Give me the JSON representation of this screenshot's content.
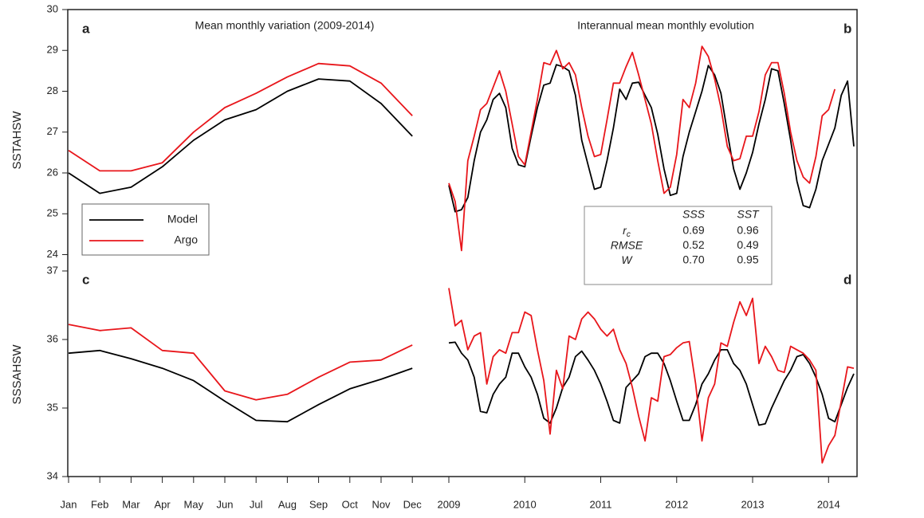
{
  "chart_data": [
    {
      "type": "line",
      "panel_label": "a",
      "title": "Mean monthly variation (2009-2014)",
      "ylabel": "SSTAHSW",
      "ylim": [
        23.6,
        30
      ],
      "yticks": [
        24,
        25,
        26,
        27,
        28,
        29,
        30
      ],
      "legend": "lower left",
      "series": [
        {
          "name": "Model",
          "color": "#000000",
          "values": [
            26.0,
            25.5,
            25.65,
            26.15,
            26.8,
            27.3,
            27.55,
            28.0,
            28.3,
            28.25,
            27.7,
            26.9
          ]
        },
        {
          "name": "Argo",
          "color": "#e8161b",
          "values": [
            26.55,
            26.05,
            26.05,
            26.25,
            27.0,
            27.6,
            27.95,
            28.35,
            28.68,
            28.62,
            28.2,
            27.4
          ]
        }
      ]
    },
    {
      "type": "line",
      "panel_label": "b",
      "title": "Interannual mean monthly evolution",
      "ylim": [
        23.6,
        30
      ],
      "xlim": [
        0,
        64.5
      ],
      "series": [
        {
          "color": "#000000",
          "values": [
            25.7,
            25.05,
            25.1,
            25.4,
            26.3,
            27.0,
            27.3,
            27.8,
            27.95,
            27.6,
            26.6,
            26.2,
            26.15,
            26.9,
            27.6,
            28.15,
            28.2,
            28.65,
            28.6,
            28.5,
            27.9,
            26.8,
            26.2,
            25.6,
            25.65,
            26.3,
            27.1,
            28.05,
            27.8,
            28.2,
            28.22,
            27.9,
            27.6,
            26.95,
            26.1,
            25.45,
            25.5,
            26.4,
            27.0,
            27.5,
            28.0,
            28.63,
            28.4,
            27.95,
            27.0,
            26.1,
            25.6,
            26.0,
            26.5,
            27.2,
            27.8,
            28.55,
            28.5,
            27.7,
            26.8,
            25.8,
            25.2,
            25.15,
            25.6,
            26.3,
            26.7,
            27.1,
            27.9,
            28.25,
            26.65
          ]
        },
        {
          "color": "#e8161b",
          "values": [
            25.75,
            25.3,
            24.1,
            26.3,
            26.9,
            27.55,
            27.7,
            28.1,
            28.5,
            28.0,
            27.2,
            26.4,
            26.2,
            27.0,
            27.8,
            28.7,
            28.65,
            29.0,
            28.55,
            28.7,
            28.4,
            27.6,
            26.9,
            26.4,
            26.45,
            27.3,
            28.2,
            28.2,
            28.6,
            28.95,
            28.4,
            27.8,
            27.2,
            26.3,
            25.5,
            25.65,
            26.45,
            27.8,
            27.6,
            28.2,
            29.1,
            28.85,
            28.3,
            27.6,
            26.65,
            26.3,
            26.35,
            26.9,
            26.9,
            27.5,
            28.4,
            28.7,
            28.7,
            27.95,
            27.0,
            26.3,
            25.9,
            25.75,
            26.4,
            27.4,
            27.55,
            28.05
          ]
        }
      ]
    },
    {
      "type": "line",
      "panel_label": "c",
      "ylabel": "SSSAHSW",
      "ylim": [
        34,
        37
      ],
      "yticks": [
        34,
        35,
        36,
        37
      ],
      "categories": [
        "Jan",
        "Feb",
        "Mar",
        "Apr",
        "May",
        "Jun",
        "Jul",
        "Aug",
        "Sep",
        "Oct",
        "Nov",
        "Dec"
      ],
      "series": [
        {
          "color": "#000000",
          "values": [
            35.8,
            35.84,
            35.72,
            35.58,
            35.4,
            35.1,
            34.82,
            34.8,
            35.05,
            35.28,
            35.42,
            35.58
          ]
        },
        {
          "color": "#e8161b",
          "values": [
            36.22,
            36.13,
            36.17,
            35.84,
            35.8,
            35.25,
            35.12,
            35.2,
            35.45,
            35.67,
            35.7,
            35.92
          ]
        }
      ]
    },
    {
      "type": "line",
      "panel_label": "d",
      "ylim": [
        34,
        37
      ],
      "xlim": [
        0,
        64.5
      ],
      "xticks": [
        {
          "value": 0,
          "label": "2009"
        },
        {
          "value": 12,
          "label": "2010"
        },
        {
          "value": 24,
          "label": "2011"
        },
        {
          "value": 36,
          "label": "2012"
        },
        {
          "value": 48,
          "label": "2013"
        },
        {
          "value": 60,
          "label": "2014"
        }
      ],
      "series": [
        {
          "color": "#000000",
          "values": [
            35.95,
            35.96,
            35.8,
            35.7,
            35.45,
            34.95,
            34.93,
            35.2,
            35.35,
            35.45,
            35.8,
            35.8,
            35.6,
            35.45,
            35.2,
            34.85,
            34.78,
            35.0,
            35.3,
            35.45,
            35.75,
            35.83,
            35.7,
            35.55,
            35.35,
            35.1,
            34.82,
            34.78,
            35.3,
            35.4,
            35.5,
            35.75,
            35.8,
            35.8,
            35.65,
            35.4,
            35.1,
            34.82,
            34.82,
            35.05,
            35.35,
            35.5,
            35.7,
            35.85,
            35.85,
            35.65,
            35.55,
            35.35,
            35.05,
            34.75,
            34.77,
            35.0,
            35.2,
            35.4,
            35.55,
            35.75,
            35.78,
            35.65,
            35.45,
            35.2,
            34.85,
            34.8,
            35.05,
            35.3,
            35.5
          ]
        },
        {
          "color": "#e8161b",
          "values": [
            36.75,
            36.2,
            36.28,
            35.85,
            36.05,
            36.1,
            35.35,
            35.75,
            35.85,
            35.8,
            36.1,
            36.1,
            36.4,
            36.35,
            35.85,
            35.4,
            34.62,
            35.55,
            35.28,
            36.05,
            36.0,
            36.3,
            36.4,
            36.3,
            36.15,
            36.05,
            36.15,
            35.85,
            35.65,
            35.3,
            34.88,
            34.52,
            35.15,
            35.1,
            35.75,
            35.78,
            35.88,
            35.95,
            35.97,
            35.35,
            34.52,
            35.15,
            35.35,
            35.95,
            35.9,
            36.25,
            36.55,
            36.35,
            36.6,
            35.65,
            35.9,
            35.75,
            35.55,
            35.52,
            35.9,
            35.85,
            35.8,
            35.7,
            35.55,
            34.2,
            34.45,
            34.6,
            35.1,
            35.6,
            35.58
          ]
        }
      ]
    }
  ],
  "stats_table": {
    "columns": [
      "SSS",
      "SST"
    ],
    "rows": [
      {
        "label": "r",
        "label_sub": "c",
        "values": [
          "0.69",
          "0.96"
        ]
      },
      {
        "label": "RMSE",
        "values": [
          "0.52",
          "0.49"
        ]
      },
      {
        "label": "W",
        "values": [
          "0.70",
          "0.95"
        ]
      }
    ]
  }
}
